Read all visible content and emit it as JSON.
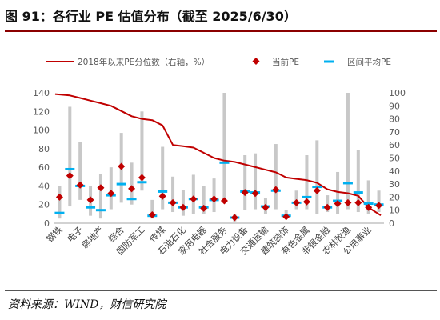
{
  "header": {
    "title": "图 91：各行业 PE 估值分布（截至 2025/6/30）"
  },
  "footer": {
    "source": "资料来源：WIND，财信研究院"
  },
  "colors": {
    "bar": "#c8c8c8",
    "line": "#c00000",
    "current": "#c00000",
    "avg": "#00b0f0",
    "title_rule": "#8b0000"
  },
  "chart_data": {
    "type": "bar",
    "legend": {
      "line_label": "2018年以来PE分位数（右轴，%）",
      "current_label": "当前PE",
      "avg_label": "区间平均PE",
      "placement": "top"
    },
    "categories": [
      "钢铁",
      "电子",
      "房地产",
      "综合",
      "国防军工",
      "传媒",
      "石油石化",
      "家用电器",
      "社会服务",
      "电力设备",
      "交通运输",
      "建筑装饰",
      "有色金属",
      "非银金融",
      "农林牧渔",
      "公用事业"
    ],
    "category_note": "x-axis shows every other industry label; 32 industries in total",
    "all_industries": [
      {
        "label": "钢铁",
        "low": 5,
        "high": 40,
        "current": 28,
        "avg": 11
      },
      {
        "label": "",
        "low": 18,
        "high": 125,
        "current": 51,
        "avg": 58
      },
      {
        "label": "电子",
        "low": 25,
        "high": 87,
        "current": 41,
        "avg": 40
      },
      {
        "label": "",
        "low": 8,
        "high": 40,
        "current": 25,
        "avg": 17
      },
      {
        "label": "房地产",
        "low": 5,
        "high": 53,
        "current": 38,
        "avg": 14
      },
      {
        "label": "",
        "low": 15,
        "high": 60,
        "current": 32,
        "avg": 30
      },
      {
        "label": "综合",
        "low": 22,
        "high": 97,
        "current": 61,
        "avg": 42
      },
      {
        "label": "",
        "low": 20,
        "high": 65,
        "current": 37,
        "avg": 26
      },
      {
        "label": "国防军工",
        "low": 35,
        "high": 120,
        "current": 49,
        "avg": 44
      },
      {
        "label": "",
        "low": 5,
        "high": 25,
        "current": 9,
        "avg": 8
      },
      {
        "label": "传媒",
        "low": 15,
        "high": 82,
        "current": 29,
        "avg": 34
      },
      {
        "label": "",
        "low": 12,
        "high": 50,
        "current": 22,
        "avg": 22
      },
      {
        "label": "石油石化",
        "low": 8,
        "high": 36,
        "current": 17,
        "avg": 17
      },
      {
        "label": "",
        "low": 10,
        "high": 52,
        "current": 26,
        "avg": 26
      },
      {
        "label": "家用电器",
        "low": 10,
        "high": 40,
        "current": 16,
        "avg": 17
      },
      {
        "label": "",
        "low": 12,
        "high": 48,
        "current": 26,
        "avg": 25
      },
      {
        "label": "社会服务",
        "low": 22,
        "high": 140,
        "current": 24,
        "avg": 65
      },
      {
        "label": "",
        "low": 2,
        "high": 10,
        "current": 6,
        "avg": 6
      },
      {
        "label": "电力设备",
        "low": 14,
        "high": 73,
        "current": 33,
        "avg": 34
      },
      {
        "label": "",
        "low": 15,
        "high": 75,
        "current": 32,
        "avg": 33
      },
      {
        "label": "交通运输",
        "low": 10,
        "high": 27,
        "current": 17,
        "avg": 18
      },
      {
        "label": "",
        "low": 15,
        "high": 85,
        "current": 36,
        "avg": 35
      },
      {
        "label": "建筑装饰",
        "low": 5,
        "high": 14,
        "current": 7,
        "avg": 8
      },
      {
        "label": "",
        "low": 15,
        "high": 35,
        "current": 22,
        "avg": 22
      },
      {
        "label": "有色金属",
        "low": 15,
        "high": 73,
        "current": 23,
        "avg": 28
      },
      {
        "label": "",
        "low": 10,
        "high": 89,
        "current": 35,
        "avg": 39
      },
      {
        "label": "非银金融",
        "low": 12,
        "high": 30,
        "current": 17,
        "avg": 17
      },
      {
        "label": "",
        "low": 10,
        "high": 55,
        "current": 21,
        "avg": 24
      },
      {
        "label": "农林牧渔",
        "low": 15,
        "high": 140,
        "current": 22,
        "avg": 43
      },
      {
        "label": "",
        "low": 12,
        "high": 79,
        "current": 22,
        "avg": 33
      },
      {
        "label": "公用事业",
        "low": 10,
        "high": 46,
        "current": 17,
        "avg": 21
      },
      {
        "label": "",
        "low": 12,
        "high": 35,
        "current": 19,
        "avg": 20
      }
    ],
    "percentile_line": [
      99,
      98,
      96,
      94,
      92,
      90,
      86,
      82,
      80,
      79,
      75,
      60,
      59,
      58,
      54,
      50,
      48,
      47,
      45,
      43,
      41,
      39,
      35,
      34,
      33,
      31,
      26,
      24,
      23,
      21,
      12,
      6
    ],
    "left_axis": {
      "ylim": [
        0,
        140
      ],
      "ticks": [
        0,
        20,
        40,
        60,
        80,
        100,
        120,
        140
      ]
    },
    "right_axis": {
      "ylim": [
        0,
        100
      ],
      "ticks": [
        0,
        10,
        20,
        30,
        40,
        50,
        60,
        70,
        80,
        90,
        100
      ]
    }
  }
}
